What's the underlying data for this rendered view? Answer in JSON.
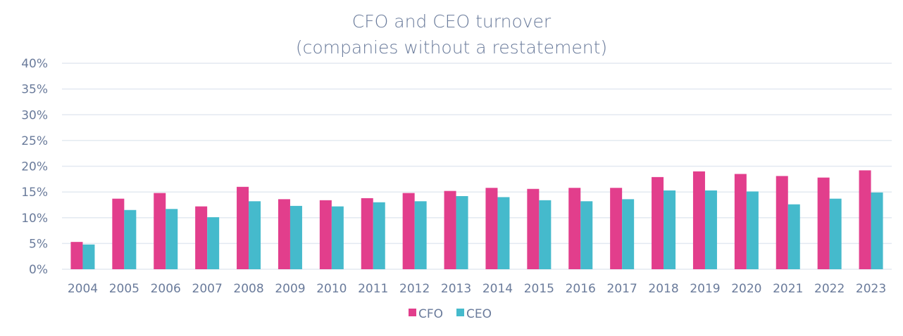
{
  "chart_data": {
    "type": "bar",
    "title": "CFO and CEO turnover",
    "subtitle": "(companies without a restatement)",
    "xlabel": "",
    "ylabel": "",
    "ylim": [
      0,
      40
    ],
    "yticks": [
      "0%",
      "5%",
      "10%",
      "15%",
      "20%",
      "25%",
      "30%",
      "35%",
      "40%"
    ],
    "grid": true,
    "legend_position": "bottom",
    "categories": [
      "2004",
      "2005",
      "2006",
      "2007",
      "2008",
      "2009",
      "2010",
      "2011",
      "2012",
      "2013",
      "2014",
      "2015",
      "2016",
      "2017",
      "2018",
      "2019",
      "2020",
      "2021",
      "2022",
      "2023"
    ],
    "series": [
      {
        "name": "CFO",
        "color": "#E23E8C",
        "values": [
          5.3,
          13.7,
          14.8,
          12.2,
          16.0,
          13.6,
          13.4,
          13.8,
          14.8,
          15.2,
          15.8,
          15.6,
          15.8,
          15.8,
          17.9,
          19.0,
          18.5,
          18.1,
          17.8,
          19.2
        ]
      },
      {
        "name": "CEO",
        "color": "#45BACC",
        "values": [
          4.8,
          11.5,
          11.7,
          10.1,
          13.2,
          12.3,
          12.2,
          13.0,
          13.2,
          14.2,
          14.0,
          13.4,
          13.2,
          13.6,
          15.3,
          15.3,
          15.1,
          12.6,
          13.7,
          14.9
        ]
      }
    ]
  }
}
